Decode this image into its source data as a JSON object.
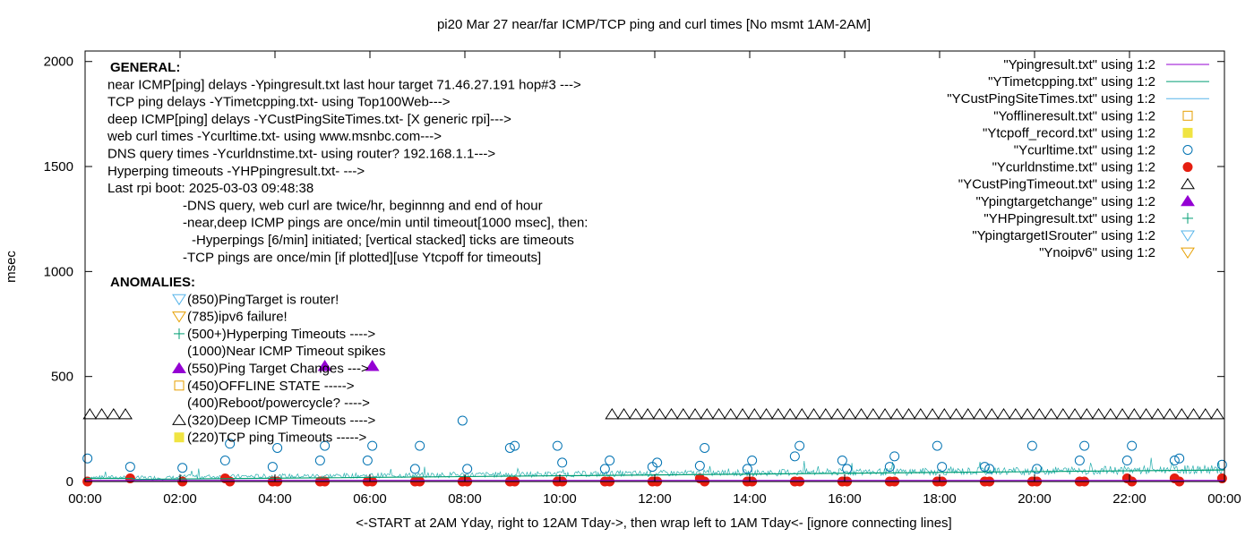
{
  "chart_data": {
    "type": "scatter",
    "title": "pi20 Mar 27  near/far ICMP/TCP ping and curl times [No msmt 1AM-2AM]",
    "xlabel": "<-START at 2AM Yday, right to 12AM Tday->, then wrap left to 1AM Tday<- [ignore connecting lines]",
    "ylabel": "msec",
    "xlim": [
      0,
      24
    ],
    "ylim": [
      0,
      2050
    ],
    "grid": false,
    "legend_position": "top-right",
    "x_ticks": [
      "00:00",
      "02:00",
      "04:00",
      "06:00",
      "08:00",
      "10:00",
      "12:00",
      "14:00",
      "16:00",
      "18:00",
      "20:00",
      "22:00",
      "00:00"
    ],
    "y_ticks": [
      "0",
      "500",
      "1000",
      "1500",
      "2000"
    ],
    "annotations_general": [
      "GENERAL:",
      "near ICMP[ping] delays -Ypingresult.txt last hour target 71.46.27.191 hop#3 --->",
      "TCP ping delays -YTimetcpping.txt- using Top100Web--->",
      "deep ICMP[ping] delays -YCustPingSiteTimes.txt- [X generic rpi]--->",
      "web curl times -Ycurltime.txt- using www.msnbc.com--->",
      "DNS query times -Ycurldnstime.txt- using router? 192.168.1.1--->",
      "Hyperping timeouts -YHPpingresult.txt- --->",
      "Last rpi boot: 2025-03-03 09:48:38",
      "-DNS query, web curl are twice/hr, beginnng and end of hour",
      "-near,deep ICMP pings are once/min until timeout[1000 msec], then:",
      "-Hyperpings [6/min] initiated; [vertical stacked] ticks are timeouts",
      "-TCP pings are once/min [if plotted][use Ytcpoff for timeouts]"
    ],
    "annotations_anomalies": [
      "ANOMALIES:",
      "(850)PingTarget is router!",
      "(785)ipv6 failure!",
      "(500+)Hyperping Timeouts ---->",
      "(1000)Near ICMP Timeout spikes",
      "(550)Ping Target Changes --->",
      "(450)OFFLINE STATE ----->",
      "(400)Reboot/powercycle? ---->",
      "(320)Deep ICMP Timeouts ---->",
      "(220)TCP ping Timeouts ----->"
    ],
    "legend": [
      {
        "label": "\"Ypingresult.txt\" using 1:2",
        "style": "line",
        "color": "#9400d3"
      },
      {
        "label": "\"YTimetcpping.txt\" using 1:2",
        "style": "line",
        "color": "#009e73"
      },
      {
        "label": "\"YCustPingSiteTimes.txt\" using 1:2",
        "style": "line",
        "color": "#56b4e9"
      },
      {
        "label": "\"Yofflineresult.txt\" using 1:2",
        "style": "square-open",
        "color": "#e69f00"
      },
      {
        "label": "\"Ytcpoff_record.txt\" using 1:2",
        "style": "square-filled",
        "color": "#f0e442"
      },
      {
        "label": "\"Ycurltime.txt\" using 1:2",
        "style": "circle-open",
        "color": "#0072b2"
      },
      {
        "label": "\"Ycurldnstime.txt\" using 1:2",
        "style": "circle-filled",
        "color": "#e51e10"
      },
      {
        "label": "\"YCustPingTimeout.txt\" using 1:2",
        "style": "triangle-up-open",
        "color": "#000000"
      },
      {
        "label": "\"Ypingtargetchange\" using 1:2",
        "style": "triangle-up-filled",
        "color": "#9400d3"
      },
      {
        "label": "\"YHPpingresult.txt\" using 1:2",
        "style": "plus",
        "color": "#009e73"
      },
      {
        "label": "\"YpingtargetISrouter\" using 1:2",
        "style": "triangle-down-open",
        "color": "#56b4e9"
      },
      {
        "label": "\"Ynoipv6\" using 1:2",
        "style": "triangle-down-open",
        "color": "#e69f00"
      }
    ],
    "series": [
      {
        "name": "\"YCustPingTimeout.txt\" using 1:2",
        "marker": "triangle-up-open",
        "color": "#000000",
        "x": [
          0.1,
          0.35,
          0.6,
          0.85,
          11.1,
          11.35,
          11.6,
          11.85,
          12.1,
          12.35,
          12.6,
          12.85,
          13.1,
          13.35,
          13.6,
          13.85,
          14.1,
          14.35,
          14.6,
          14.85,
          15.1,
          15.35,
          15.6,
          15.85,
          16.1,
          16.35,
          16.6,
          16.85,
          17.1,
          17.35,
          17.6,
          17.85,
          18.1,
          18.35,
          18.6,
          18.85,
          19.1,
          19.35,
          19.6,
          19.85,
          20.1,
          20.35,
          20.6,
          20.85,
          21.1,
          21.35,
          21.6,
          21.85,
          22.1,
          22.35,
          22.6,
          22.85,
          23.1,
          23.35,
          23.6,
          23.85
        ],
        "y": [
          320,
          320,
          320,
          320,
          320,
          320,
          320,
          320,
          320,
          320,
          320,
          320,
          320,
          320,
          320,
          320,
          320,
          320,
          320,
          320,
          320,
          320,
          320,
          320,
          320,
          320,
          320,
          320,
          320,
          320,
          320,
          320,
          320,
          320,
          320,
          320,
          320,
          320,
          320,
          320,
          320,
          320,
          320,
          320,
          320,
          320,
          320,
          320,
          320,
          320,
          320,
          320,
          320,
          320,
          320,
          320
        ]
      },
      {
        "name": "\"Ypingtargetchange\" using 1:2",
        "marker": "triangle-up-filled",
        "color": "#9400d3",
        "x": [
          5.05,
          6.05
        ],
        "y": [
          550,
          550
        ]
      },
      {
        "name": "\"Ycurltime.txt\" using 1:2",
        "marker": "circle-open",
        "color": "#0072b2",
        "x": [
          0.05,
          0.95,
          2.05,
          2.95,
          3.05,
          3.95,
          4.05,
          4.95,
          5.05,
          5.95,
          6.05,
          6.95,
          7.05,
          7.95,
          8.05,
          8.95,
          9.05,
          9.95,
          10.05,
          10.95,
          11.05,
          11.95,
          12.05,
          12.95,
          13.05,
          13.95,
          14.05,
          14.95,
          15.05,
          15.95,
          16.05,
          16.95,
          17.05,
          17.95,
          18.05,
          18.95,
          19.05,
          19.95,
          20.05,
          20.95,
          21.05,
          21.95,
          22.05,
          22.95,
          23.05,
          23.95
        ],
        "y": [
          110,
          70,
          65,
          100,
          180,
          70,
          160,
          100,
          170,
          100,
          170,
          60,
          170,
          290,
          60,
          160,
          170,
          170,
          90,
          60,
          100,
          70,
          90,
          75,
          160,
          60,
          100,
          120,
          170,
          100,
          60,
          70,
          120,
          170,
          70,
          70,
          60,
          170,
          60,
          100,
          170,
          100,
          170,
          100,
          110,
          80
        ]
      },
      {
        "name": "\"Ycurldnstime.txt\" using 1:2",
        "marker": "circle-filled",
        "color": "#e51e10",
        "x": [
          0.05,
          0.95,
          2.05,
          2.95,
          3.05,
          3.95,
          4.05,
          4.95,
          5.05,
          5.95,
          6.05,
          6.95,
          7.05,
          7.95,
          8.05,
          8.95,
          9.05,
          9.95,
          10.05,
          10.95,
          11.05,
          11.95,
          12.05,
          12.95,
          13.05,
          13.95,
          14.05,
          14.95,
          15.05,
          15.95,
          16.05,
          16.95,
          17.05,
          17.95,
          18.05,
          18.95,
          19.05,
          19.95,
          20.05,
          20.95,
          21.05,
          21.95,
          22.05,
          22.95,
          23.05,
          23.95
        ],
        "y": [
          0,
          15,
          0,
          15,
          0,
          0,
          0,
          0,
          0,
          0,
          0,
          0,
          0,
          0,
          0,
          0,
          0,
          0,
          0,
          0,
          0,
          0,
          0,
          15,
          0,
          0,
          0,
          0,
          0,
          0,
          0,
          0,
          0,
          0,
          0,
          0,
          0,
          0,
          0,
          0,
          0,
          15,
          0,
          15,
          0,
          15
        ]
      },
      {
        "name": "\"YTimetcpping.txt\" using 1:2",
        "marker": "line",
        "color": "#009e73",
        "x": [
          0,
          1,
          1.01,
          24
        ],
        "y": [
          15,
          15,
          10,
          55
        ]
      },
      {
        "name": "\"Ypingresult.txt\" using 1:2",
        "marker": "line",
        "color": "#9400d3",
        "x": [
          0,
          24
        ],
        "y": [
          5,
          5
        ]
      }
    ]
  }
}
